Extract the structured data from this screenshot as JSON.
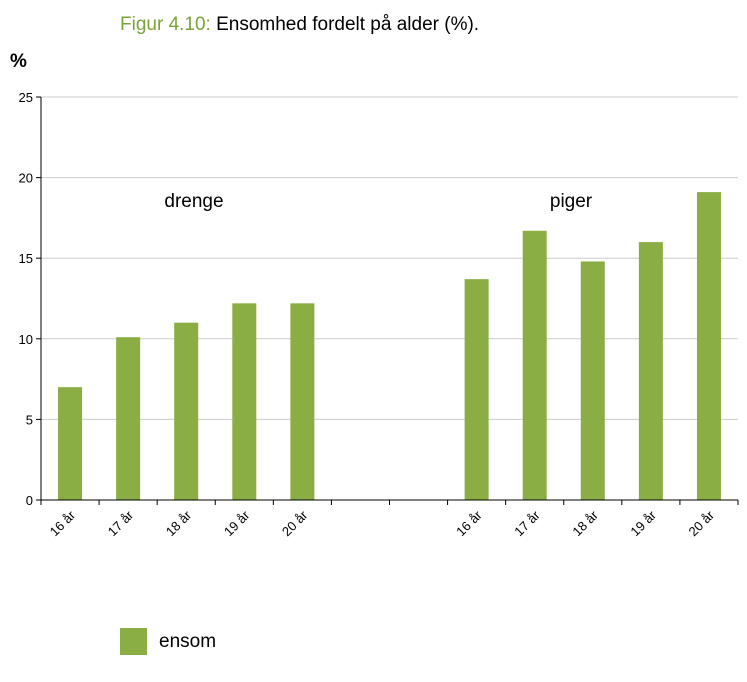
{
  "figure": {
    "number": "Figur 4.10:",
    "title": "Ensomhed fordelt på alder (%)."
  },
  "colors": {
    "bar": "#8aae44",
    "title_number": "#7aa33a",
    "grid": "#cccccc"
  },
  "chart_data": {
    "type": "bar",
    "ylabel": "%",
    "ylim": [
      0,
      25
    ],
    "yticks": [
      0,
      5,
      10,
      15,
      20,
      25
    ],
    "grid": true,
    "categories": [
      "16 år",
      "17 år",
      "18 år",
      "19 år",
      "20 år",
      "",
      "",
      "16 år",
      "17 år",
      "18 år",
      "19 år",
      "20 år"
    ],
    "series": [
      {
        "name": "ensom",
        "values": [
          7.0,
          10.1,
          11.0,
          12.2,
          12.2,
          null,
          null,
          13.7,
          16.7,
          14.8,
          16.0,
          19.1
        ]
      }
    ],
    "annotations": [
      {
        "text": "drenge"
      },
      {
        "text": "piger"
      }
    ],
    "legend_position": "bottom-left"
  }
}
